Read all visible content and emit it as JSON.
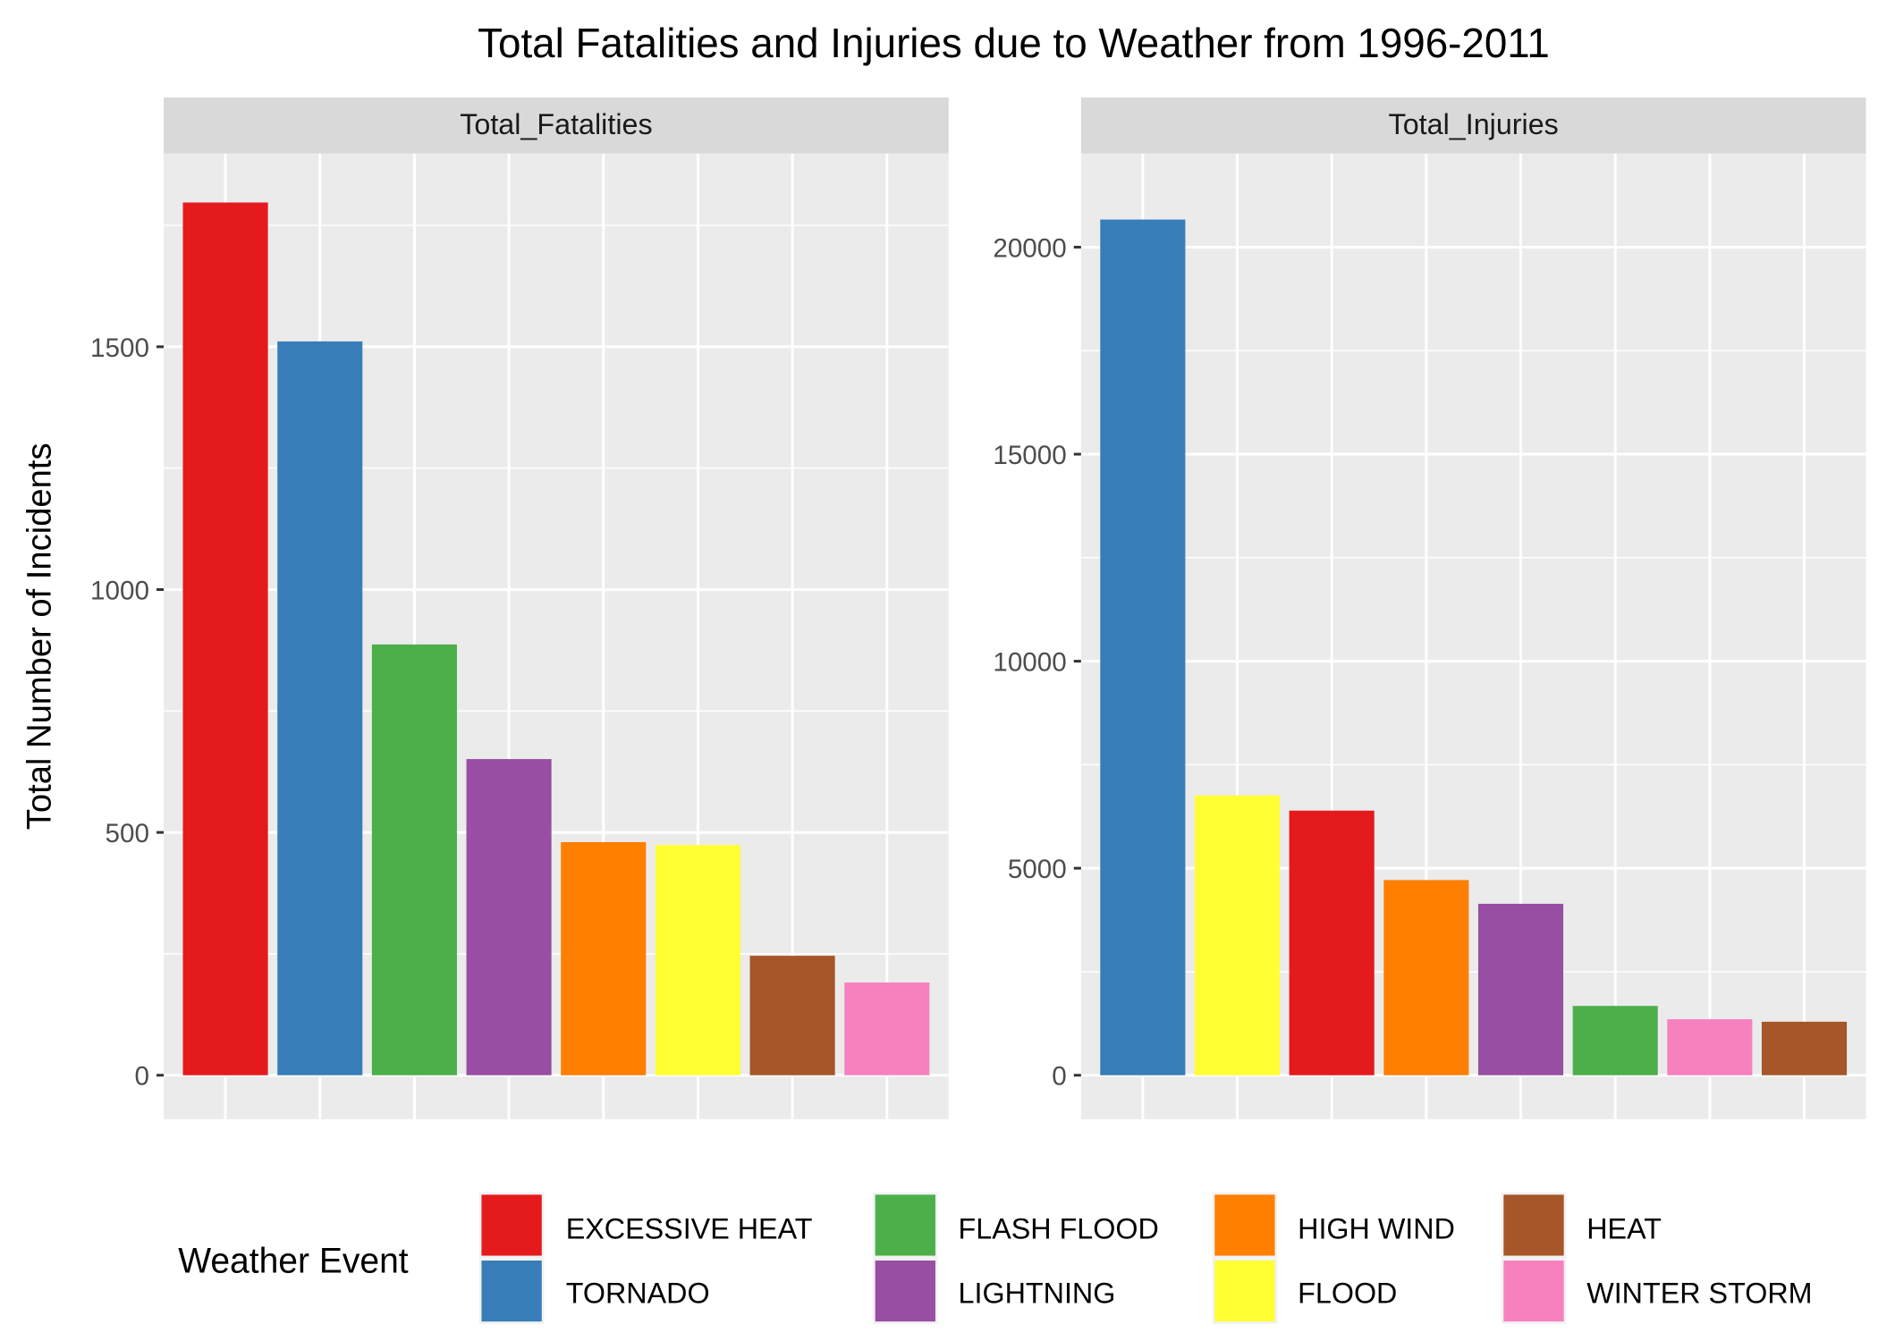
{
  "chart_data": {
    "type": "bar",
    "title": "Total Fatalities and Injuries due to Weather from 1996-2011",
    "ylabel": "Total Number of Incidents",
    "xlabel": "",
    "grid": true,
    "legend": {
      "title": "Weather Event",
      "position": "bottom",
      "entries": [
        {
          "label": "EXCESSIVE HEAT",
          "color": "#e41a1c"
        },
        {
          "label": "TORNADO",
          "color": "#377eb8"
        },
        {
          "label": "FLASH FLOOD",
          "color": "#4daf4a"
        },
        {
          "label": "LIGHTNING",
          "color": "#984ea3"
        },
        {
          "label": "HIGH WIND",
          "color": "#ff7f00"
        },
        {
          "label": "FLOOD",
          "color": "#ffff33"
        },
        {
          "label": "HEAT",
          "color": "#a65628"
        },
        {
          "label": "WINTER STORM",
          "color": "#f781bf"
        }
      ]
    },
    "panels": [
      {
        "strip": "Total_Fatalities",
        "ylim": [
          0,
          1850
        ],
        "yticks": [
          0,
          500,
          1000,
          1500
        ],
        "bars": [
          {
            "event": "EXCESSIVE HEAT",
            "value": 1797
          },
          {
            "event": "TORNADO",
            "value": 1511
          },
          {
            "event": "FLASH FLOOD",
            "value": 887
          },
          {
            "event": "LIGHTNING",
            "value": 651
          },
          {
            "event": "HIGH WIND",
            "value": 480
          },
          {
            "event": "FLOOD",
            "value": 474
          },
          {
            "event": "HEAT",
            "value": 246
          },
          {
            "event": "WINTER STORM",
            "value": 191
          }
        ]
      },
      {
        "strip": "Total_Injuries",
        "ylim": [
          0,
          21700
        ],
        "yticks": [
          0,
          5000,
          10000,
          15000,
          20000
        ],
        "bars": [
          {
            "event": "TORNADO",
            "value": 20667
          },
          {
            "event": "FLOOD",
            "value": 6758
          },
          {
            "event": "EXCESSIVE HEAT",
            "value": 6391
          },
          {
            "event": "HIGH WIND",
            "value": 4714
          },
          {
            "event": "LIGHTNING",
            "value": 4141
          },
          {
            "event": "FLASH FLOOD",
            "value": 1674
          },
          {
            "event": "WINTER STORM",
            "value": 1353
          },
          {
            "event": "HEAT",
            "value": 1292
          }
        ]
      }
    ]
  }
}
